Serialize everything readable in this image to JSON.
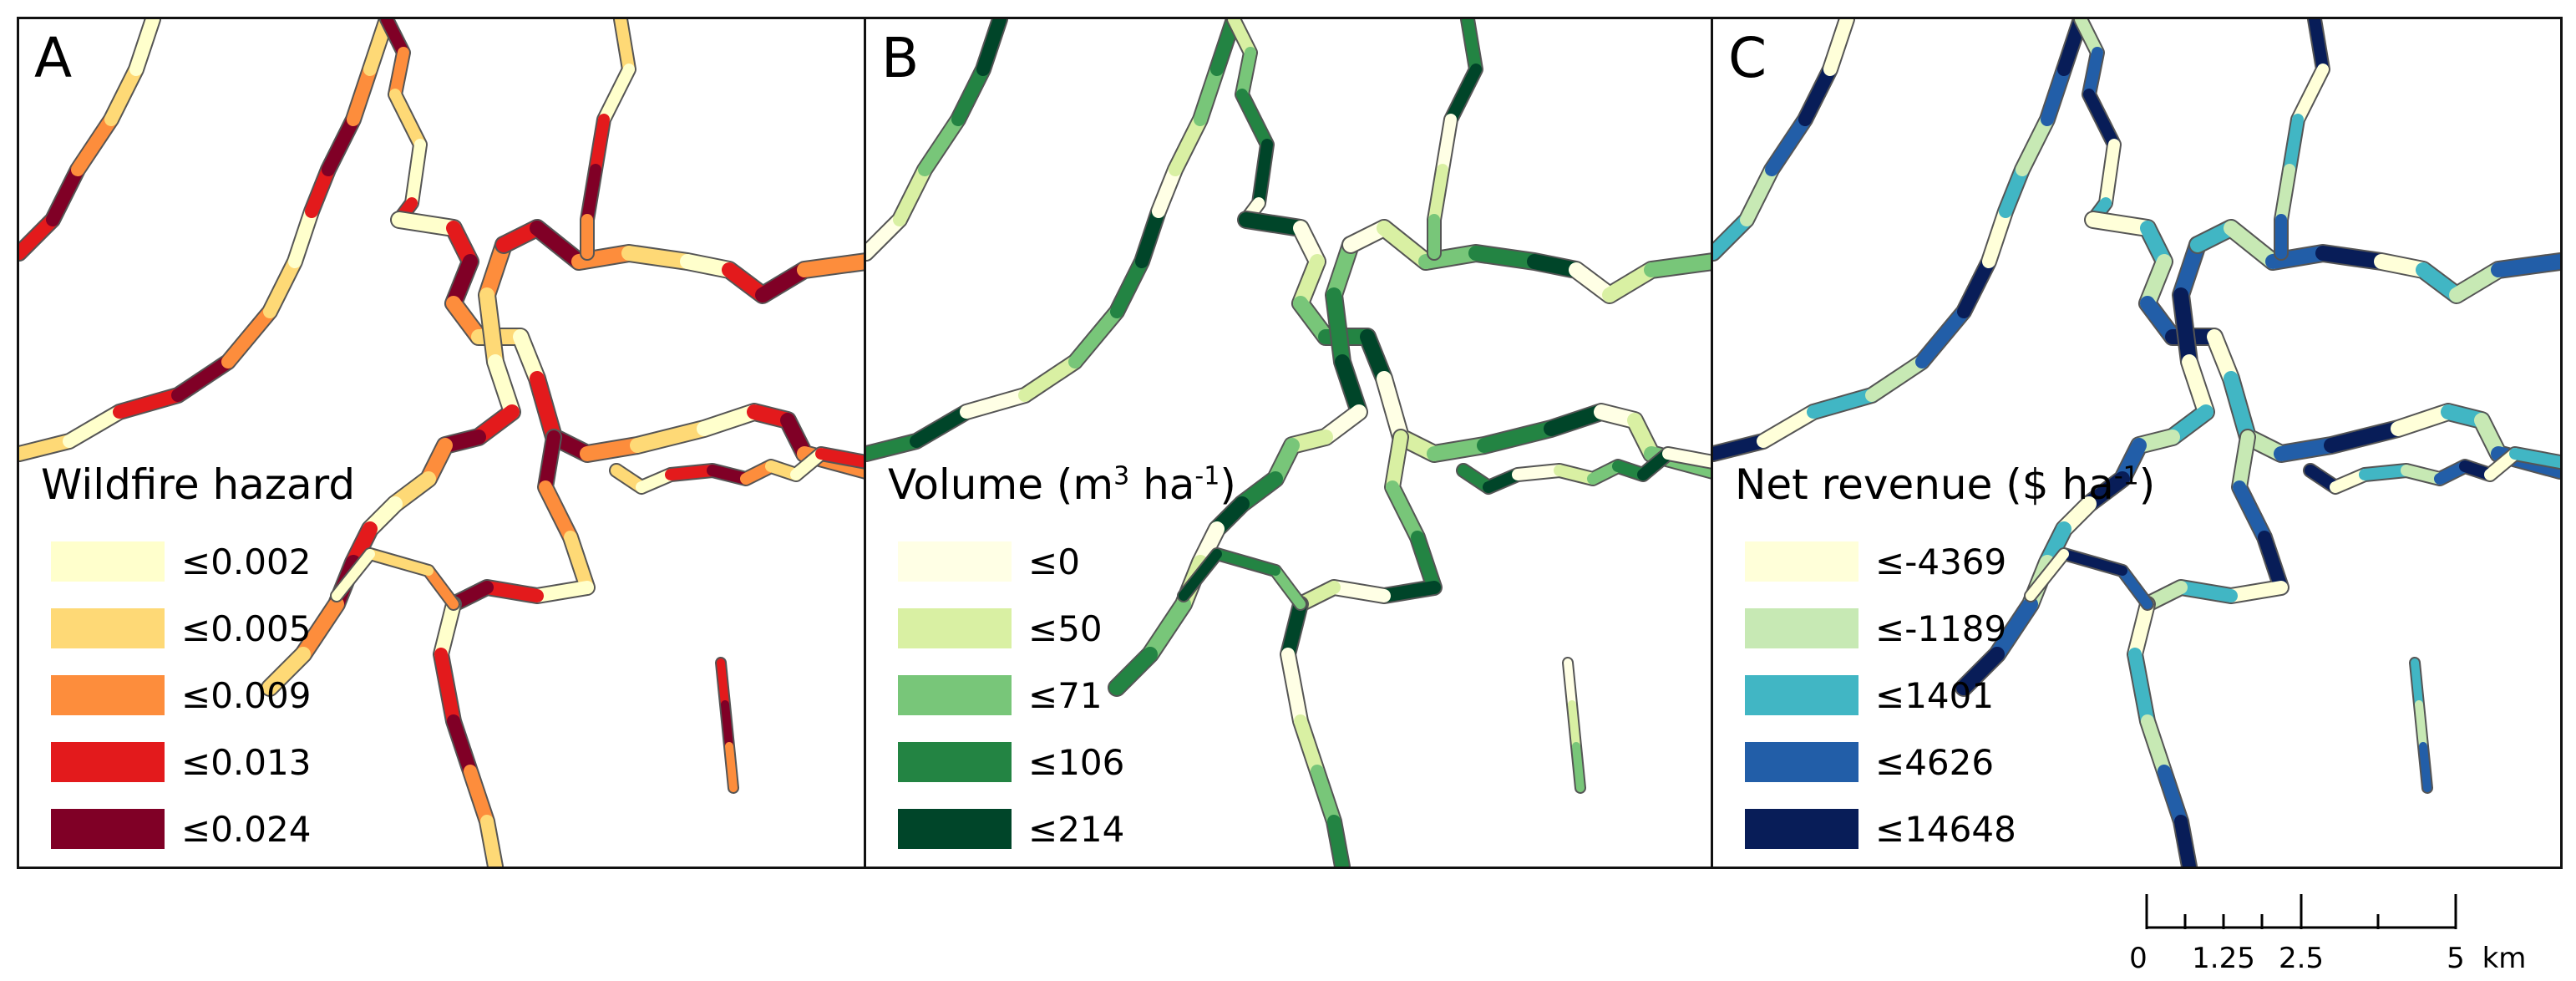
{
  "panels": [
    {
      "letter": "A",
      "legend_title": "Wildfire hazard",
      "classes": [
        {
          "label": "≤0.002",
          "color": "#ffffcc"
        },
        {
          "label": "≤0.005",
          "color": "#fed976"
        },
        {
          "label": "≤0.009",
          "color": "#fd8d3c"
        },
        {
          "label": "≤0.013",
          "color": "#e31a1c"
        },
        {
          "label": "≤0.024",
          "color": "#800026"
        }
      ],
      "network_colors": [
        "#e31a1c",
        "#800026",
        "#fd8d3c",
        "#fed976",
        "#ffffcc"
      ]
    },
    {
      "letter": "B",
      "legend_title": {
        "text": "Volume (m",
        "sup1": "3",
        "mid": " ha",
        "sup2": "-1",
        "end": ")"
      },
      "classes": [
        {
          "label": "≤0",
          "color": "#ffffe5"
        },
        {
          "label": "≤50",
          "color": "#d9f0a3"
        },
        {
          "label": "≤71",
          "color": "#78c679"
        },
        {
          "label": "≤106",
          "color": "#238443"
        },
        {
          "label": "≤214",
          "color": "#004529"
        }
      ],
      "network_colors": [
        "#ffffe5",
        "#d9f0a3",
        "#78c679",
        "#238443",
        "#004529"
      ]
    },
    {
      "letter": "C",
      "legend_title": {
        "text": "Net revenue ($ ha",
        "sup1": "-1",
        "end": ")"
      },
      "classes": [
        {
          "label": "≤-4369",
          "color": "#ffffd9"
        },
        {
          "label": "≤-1189",
          "color": "#c7e9b4"
        },
        {
          "label": "≤1401",
          "color": "#41b6c4"
        },
        {
          "label": "≤4626",
          "color": "#225ea8"
        },
        {
          "label": "≤14648",
          "color": "#081d58"
        }
      ],
      "network_colors": [
        "#41b6c4",
        "#c7e9b4",
        "#225ea8",
        "#081d58",
        "#ffffd9"
      ]
    }
  ],
  "scale_bar": {
    "ticks": [
      "0",
      "1.25",
      "2.5",
      "5"
    ],
    "unit": "km"
  }
}
